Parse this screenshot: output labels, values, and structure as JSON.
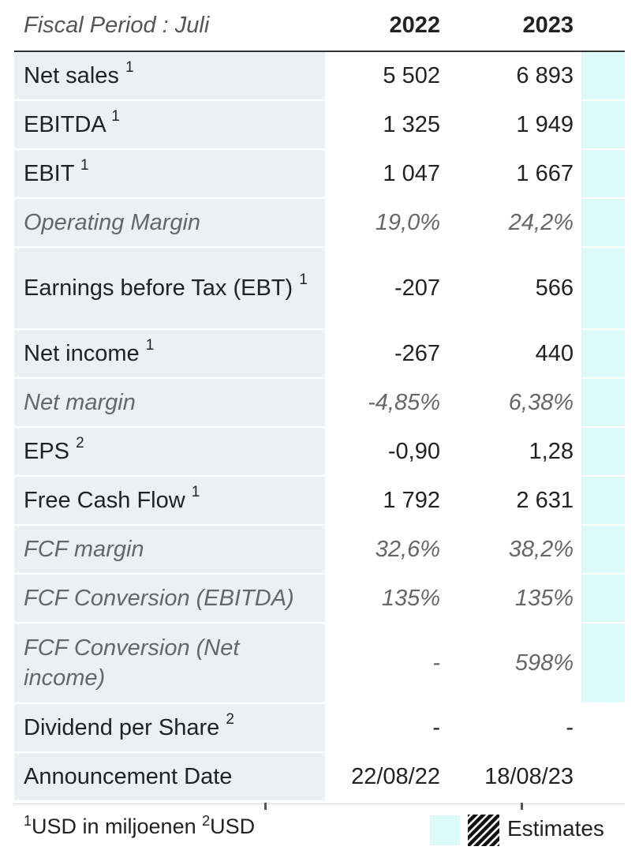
{
  "header": {
    "period_label": "Fiscal Period : Juli",
    "years": [
      "2022",
      "2023"
    ]
  },
  "rows": [
    {
      "label": "Net sales",
      "note": "1",
      "v2022": "5 502",
      "v2023": "6 893"
    },
    {
      "label": "EBITDA",
      "note": "1",
      "v2022": "1 325",
      "v2023": "1 949"
    },
    {
      "label": "EBIT",
      "note": "1",
      "v2022": "1 047",
      "v2023": "1 667"
    },
    {
      "label": "Operating Margin",
      "note": "",
      "v2022": "19,0%",
      "v2023": "24,2%"
    },
    {
      "label": "Earnings before Tax (EBT)",
      "note": "1",
      "v2022": "-207",
      "v2023": "566"
    },
    {
      "label": "Net income",
      "note": "1",
      "v2022": "-267",
      "v2023": "440"
    },
    {
      "label": "Net margin",
      "note": "",
      "v2022": "-4,85%",
      "v2023": "6,38%"
    },
    {
      "label": "EPS",
      "note": "2",
      "v2022": "-0,90",
      "v2023": "1,28"
    },
    {
      "label": "Free Cash Flow",
      "note": "1",
      "v2022": "1 792",
      "v2023": "2 631"
    },
    {
      "label": "FCF margin",
      "note": "",
      "v2022": "32,6%",
      "v2023": "38,2%"
    },
    {
      "label": "FCF Conversion (EBITDA)",
      "note": "",
      "v2022": "135%",
      "v2023": "135%"
    },
    {
      "label": "FCF Conversion (Net income)",
      "note": "",
      "v2022": "-",
      "v2023": "598%"
    },
    {
      "label": "Dividend per Share",
      "note": "2",
      "v2022": "-",
      "v2023": "-"
    },
    {
      "label": "Announcement Date",
      "note": "",
      "v2022": "22/08/22",
      "v2023": "18/08/23"
    }
  ],
  "footnotes": {
    "n1_mark": "1",
    "n1_text": "USD in miljoenen",
    "n2_mark": "2",
    "n2_text": "USD"
  },
  "legend": {
    "estimates_label": "Estimates",
    "estimate_color": "#dcfafa"
  }
}
